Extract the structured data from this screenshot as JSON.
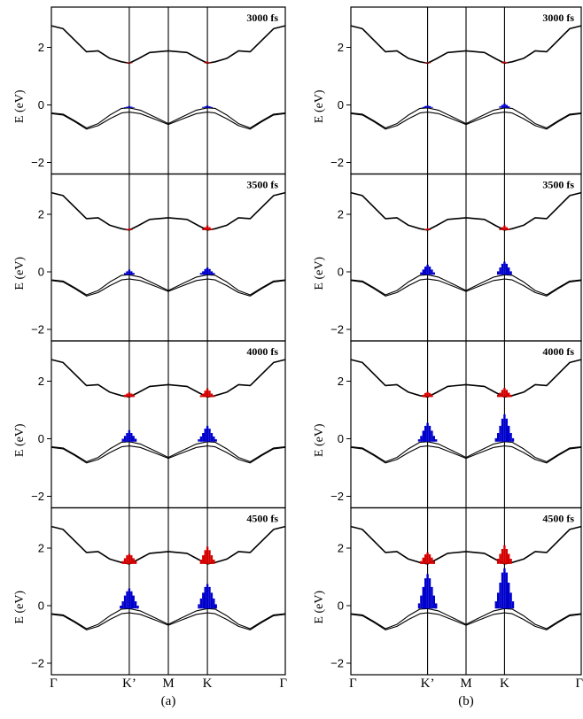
{
  "chart_data": {
    "type": "line",
    "description_free": true,
    "columns": [
      {
        "label": "(a)",
        "panels": [
          {
            "time_label": "3000 fs",
            "cb_k": [
              0.06,
              0.03
            ],
            "cb_kp": [
              0.03,
              0.02
            ],
            "vb_k": [
              0.08,
              0.05,
              0.03
            ],
            "vb_kp": [
              0.06,
              0.04,
              0.02
            ]
          },
          {
            "time_label": "3500 fs",
            "cb_k": [
              0.16,
              0.1,
              0.05
            ],
            "cb_kp": [
              0.06,
              0.04
            ],
            "vb_k": [
              0.25,
              0.2,
              0.12,
              0.06
            ],
            "vb_kp": [
              0.18,
              0.12,
              0.06
            ]
          },
          {
            "time_label": "4000 fs",
            "cb_k": [
              0.3,
              0.22,
              0.12,
              0.06
            ],
            "cb_kp": [
              0.16,
              0.12,
              0.08
            ],
            "vb_k": [
              0.55,
              0.45,
              0.3,
              0.18,
              0.08
            ],
            "vb_kp": [
              0.4,
              0.3,
              0.2,
              0.1
            ]
          },
          {
            "time_label": "4500 fs",
            "cb_k": [
              0.6,
              0.48,
              0.3,
              0.15
            ],
            "cb_kp": [
              0.35,
              0.3,
              0.2,
              0.1
            ],
            "vb_k": [
              0.85,
              0.75,
              0.55,
              0.35,
              0.15
            ],
            "vb_kp": [
              0.7,
              0.6,
              0.45,
              0.25,
              0.1
            ]
          }
        ]
      },
      {
        "label": "(b)",
        "panels": [
          {
            "time_label": "3000 fs",
            "cb_k": [
              0.06,
              0.03
            ],
            "cb_kp": [
              0.03,
              0.02
            ],
            "vb_k": [
              0.15,
              0.1,
              0.05
            ],
            "vb_kp": [
              0.08,
              0.06,
              0.03
            ]
          },
          {
            "time_label": "3500 fs",
            "cb_k": [
              0.16,
              0.1,
              0.05
            ],
            "cb_kp": [
              0.06,
              0.04
            ],
            "vb_k": [
              0.45,
              0.38,
              0.25,
              0.12
            ],
            "vb_kp": [
              0.35,
              0.28,
              0.18,
              0.08
            ]
          },
          {
            "time_label": "4000 fs",
            "cb_k": [
              0.32,
              0.25,
              0.15,
              0.08
            ],
            "cb_kp": [
              0.18,
              0.14,
              0.08
            ],
            "vb_k": [
              0.95,
              0.8,
              0.55,
              0.3,
              0.12
            ],
            "vb_kp": [
              0.65,
              0.55,
              0.38,
              0.2,
              0.08
            ]
          },
          {
            "time_label": "4500 fs",
            "cb_k": [
              0.65,
              0.52,
              0.35,
              0.18
            ],
            "cb_kp": [
              0.4,
              0.33,
              0.22,
              0.1
            ],
            "vb_k": [
              1.4,
              1.25,
              0.9,
              0.55,
              0.25
            ],
            "vb_kp": [
              1.2,
              1.05,
              0.75,
              0.45,
              0.18
            ]
          }
        ]
      }
    ],
    "xticks": [
      "Γ",
      "K’",
      "M",
      "K",
      "Γ"
    ],
    "x_tick_positions": [
      0,
      0.333,
      0.5,
      0.667,
      1.0
    ],
    "ylabel": "E (eV)",
    "ylim": [
      -2.4,
      3.4
    ],
    "yticks": [
      -2,
      0,
      2
    ],
    "bands": {
      "conduction": {
        "x": [
          0,
          0.05,
          0.1,
          0.15,
          0.2,
          0.25,
          0.3,
          0.333,
          0.37,
          0.42,
          0.5,
          0.58,
          0.63,
          0.667,
          0.7,
          0.75,
          0.8,
          0.85,
          0.9,
          0.95,
          1.0
        ],
        "y": [
          2.75,
          2.65,
          2.25,
          1.85,
          1.88,
          1.62,
          1.5,
          1.45,
          1.6,
          1.82,
          1.88,
          1.82,
          1.6,
          1.45,
          1.5,
          1.62,
          1.88,
          1.85,
          2.25,
          2.65,
          2.75
        ]
      },
      "valence_upper": {
        "x": [
          0,
          0.05,
          0.1,
          0.15,
          0.2,
          0.25,
          0.3,
          0.333,
          0.38,
          0.45,
          0.5,
          0.55,
          0.62,
          0.667,
          0.7,
          0.75,
          0.8,
          0.85,
          0.9,
          0.95,
          1.0
        ],
        "y": [
          -0.28,
          -0.32,
          -0.55,
          -0.8,
          -0.65,
          -0.35,
          -0.12,
          -0.1,
          -0.18,
          -0.45,
          -0.65,
          -0.45,
          -0.18,
          -0.1,
          -0.12,
          -0.35,
          -0.65,
          -0.8,
          -0.55,
          -0.32,
          -0.28
        ]
      },
      "valence_lower": {
        "x": [
          0,
          0.05,
          0.1,
          0.15,
          0.2,
          0.25,
          0.3,
          0.333,
          0.38,
          0.45,
          0.5,
          0.55,
          0.62,
          0.667,
          0.7,
          0.75,
          0.8,
          0.85,
          0.9,
          0.95,
          1.0
        ],
        "y": [
          -0.3,
          -0.35,
          -0.58,
          -0.84,
          -0.72,
          -0.48,
          -0.28,
          -0.25,
          -0.3,
          -0.52,
          -0.68,
          -0.52,
          -0.3,
          -0.25,
          -0.28,
          -0.48,
          -0.72,
          -0.84,
          -0.58,
          -0.35,
          -0.3
        ]
      }
    },
    "colors": {
      "band": "#000000",
      "electrons": "#d40000",
      "holes": "#0000cc",
      "vlines": "#000000"
    }
  }
}
